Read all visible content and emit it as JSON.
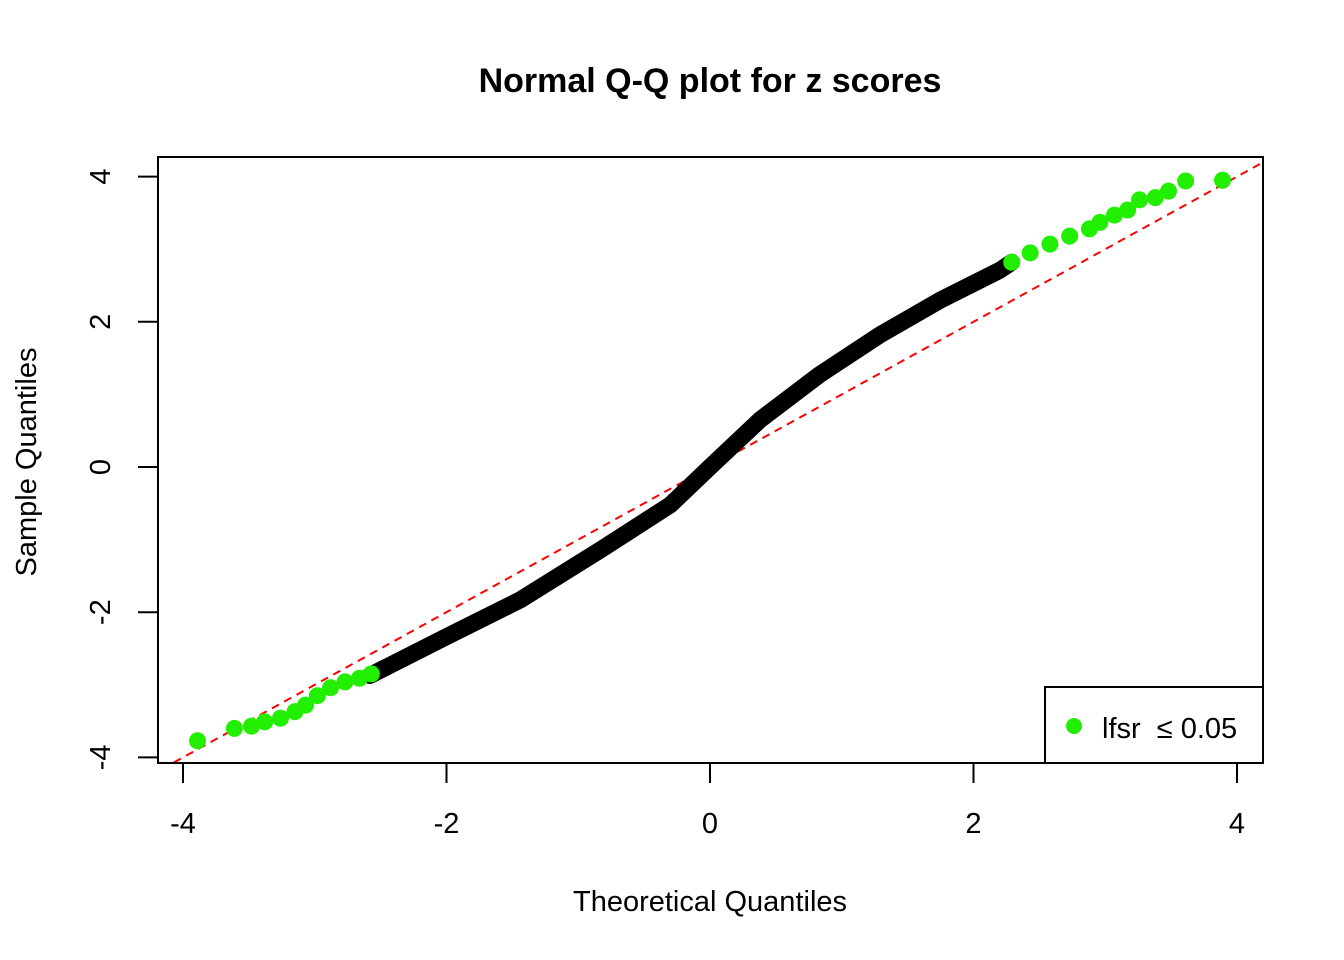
{
  "chart_data": {
    "type": "scatter",
    "title": "Normal Q-Q plot for z scores",
    "xlabel": "Theoretical Quantiles",
    "ylabel": "Sample Quantiles",
    "xlim": [
      -4.2,
      4.2
    ],
    "ylim": [
      -4.1,
      4.3
    ],
    "xticks": [
      -4,
      -2,
      0,
      2,
      4
    ],
    "yticks": [
      -4,
      -2,
      0,
      2,
      4
    ],
    "grid": false,
    "reference_line": {
      "intercept": 0,
      "slope": 1,
      "color": "#ff0000",
      "style": "dashed"
    },
    "series": [
      {
        "color": "#000000",
        "points": [
          [
            -2.58,
            -2.87
          ],
          [
            -1.97,
            -2.31
          ],
          [
            -1.44,
            -1.83
          ],
          [
            -0.83,
            -1.14
          ],
          [
            -0.3,
            -0.52
          ],
          [
            0,
            0
          ],
          [
            0.38,
            0.65
          ],
          [
            0.83,
            1.27
          ],
          [
            1.29,
            1.82
          ],
          [
            1.75,
            2.3
          ],
          [
            2.2,
            2.71
          ],
          [
            2.29,
            2.82
          ]
        ]
      },
      {
        "name": "lfsr ≤ 0.05",
        "color": "#22ee00",
        "points": [
          [
            -3.89,
            -3.77
          ],
          [
            -3.61,
            -3.6
          ],
          [
            -3.48,
            -3.57
          ],
          [
            -3.38,
            -3.51
          ],
          [
            -3.26,
            -3.46
          ],
          [
            -3.15,
            -3.37
          ],
          [
            -3.07,
            -3.28
          ],
          [
            -2.98,
            -3.15
          ],
          [
            -2.88,
            -3.04
          ],
          [
            -2.77,
            -2.96
          ],
          [
            -2.66,
            -2.91
          ],
          [
            -2.57,
            -2.85
          ],
          [
            2.29,
            2.82
          ],
          [
            2.43,
            2.95
          ],
          [
            2.58,
            3.07
          ],
          [
            2.73,
            3.18
          ],
          [
            2.88,
            3.28
          ],
          [
            2.96,
            3.37
          ],
          [
            3.07,
            3.47
          ],
          [
            3.17,
            3.54
          ],
          [
            3.26,
            3.68
          ],
          [
            3.38,
            3.71
          ],
          [
            3.48,
            3.8
          ],
          [
            3.61,
            3.94
          ],
          [
            3.89,
            3.95
          ]
        ]
      }
    ],
    "legend": {
      "position": "bottom-right",
      "label": "lfsr  ≤ 0.05"
    }
  }
}
